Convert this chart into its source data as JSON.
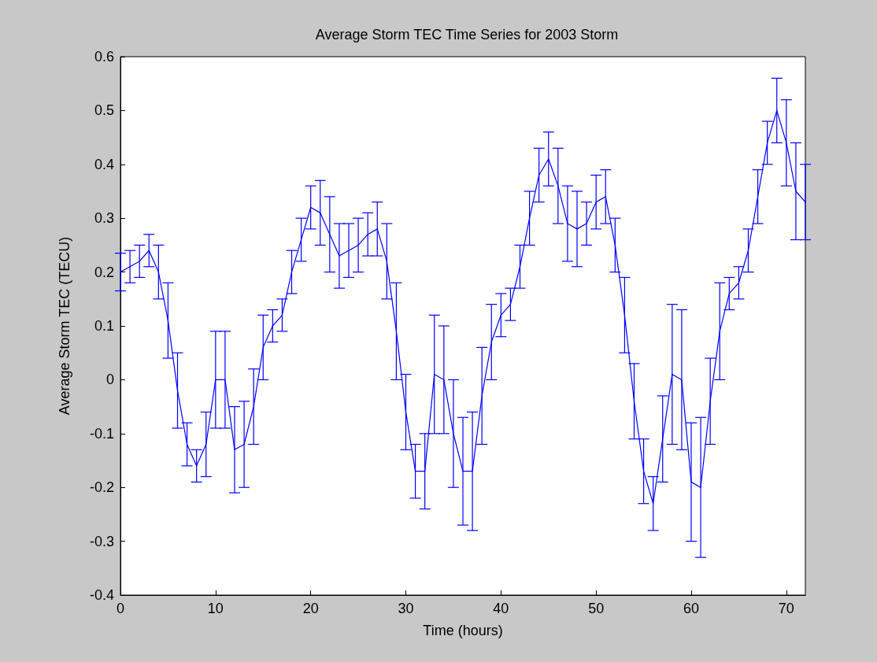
{
  "chart_data": {
    "type": "line",
    "title": "Average Storm TEC Time Series for 2003 Storm",
    "xlabel": "Time (hours)",
    "ylabel": "Average Storm TEC (TECU)",
    "x": [
      0,
      1,
      2,
      3,
      4,
      5,
      6,
      7,
      8,
      9,
      10,
      11,
      12,
      13,
      14,
      15,
      16,
      17,
      18,
      19,
      20,
      21,
      22,
      23,
      24,
      25,
      26,
      27,
      28,
      29,
      30,
      31,
      32,
      33,
      34,
      35,
      36,
      37,
      38,
      39,
      40,
      41,
      42,
      43,
      44,
      45,
      46,
      47,
      48,
      49,
      50,
      51,
      52,
      53,
      54,
      55,
      56,
      57,
      58,
      59,
      60,
      61,
      62,
      63,
      64,
      65,
      66,
      67,
      68,
      69,
      70,
      71,
      72
    ],
    "series": [
      {
        "color": "#0000ff",
        "values": [
          0.2,
          0.21,
          0.22,
          0.24,
          0.2,
          0.11,
          -0.02,
          -0.12,
          -0.16,
          -0.12,
          0.0,
          0.0,
          -0.13,
          -0.12,
          -0.05,
          0.06,
          0.1,
          0.12,
          0.2,
          0.26,
          0.32,
          0.31,
          0.27,
          0.23,
          0.24,
          0.25,
          0.27,
          0.28,
          0.22,
          0.09,
          -0.06,
          -0.17,
          -0.17,
          0.01,
          0.0,
          -0.1,
          -0.17,
          -0.17,
          -0.03,
          0.07,
          0.12,
          0.14,
          0.21,
          0.3,
          0.38,
          0.41,
          0.36,
          0.29,
          0.28,
          0.29,
          0.33,
          0.34,
          0.25,
          0.12,
          -0.04,
          -0.17,
          -0.23,
          -0.11,
          0.01,
          0.0,
          -0.19,
          -0.2,
          -0.04,
          0.09,
          0.16,
          0.18,
          0.24,
          0.34,
          0.44,
          0.5,
          0.44,
          0.35,
          0.33
        ],
        "errors": [
          0.035,
          0.03,
          0.03,
          0.03,
          0.05,
          0.07,
          0.07,
          0.04,
          0.03,
          0.06,
          0.09,
          0.09,
          0.08,
          0.08,
          0.07,
          0.06,
          0.03,
          0.03,
          0.04,
          0.04,
          0.04,
          0.06,
          0.07,
          0.06,
          0.05,
          0.05,
          0.04,
          0.05,
          0.07,
          0.09,
          0.07,
          0.05,
          0.07,
          0.11,
          0.1,
          0.1,
          0.1,
          0.11,
          0.09,
          0.07,
          0.04,
          0.03,
          0.04,
          0.05,
          0.05,
          0.05,
          0.07,
          0.07,
          0.07,
          0.04,
          0.05,
          0.05,
          0.05,
          0.07,
          0.07,
          0.06,
          0.05,
          0.08,
          0.13,
          0.13,
          0.11,
          0.13,
          0.08,
          0.09,
          0.03,
          0.03,
          0.04,
          0.05,
          0.04,
          0.06,
          0.08,
          0.09,
          0.07
        ]
      }
    ],
    "xlim": [
      0,
      72
    ],
    "xticks": [
      0,
      10,
      20,
      30,
      40,
      50,
      60,
      70
    ],
    "ylim": [
      -0.4,
      0.6
    ],
    "yticks": [
      -0.4,
      -0.3,
      -0.2,
      -0.1,
      0,
      0.1,
      0.2,
      0.3,
      0.4,
      0.5,
      0.6
    ],
    "marker": "none",
    "line_style": "solid"
  }
}
